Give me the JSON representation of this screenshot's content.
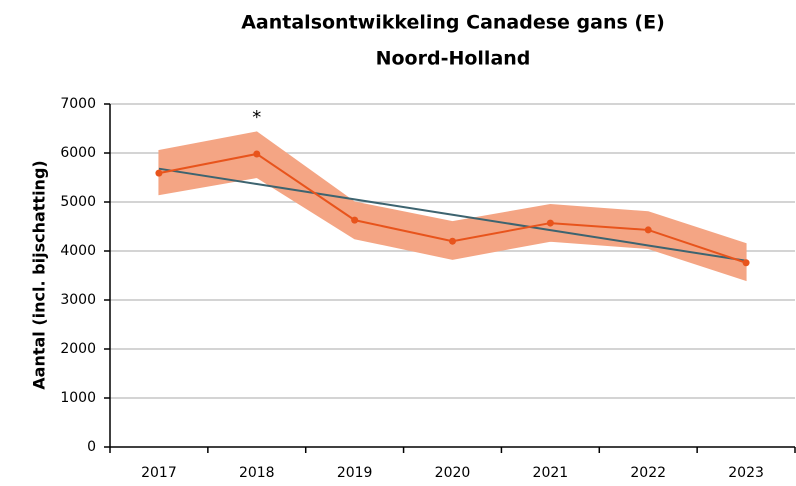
{
  "chart_data": {
    "type": "line",
    "title": [
      "Aantalsontwikkeling Canadese gans (E)",
      "Noord-Holland"
    ],
    "ylabel": "Aantal (incl. bijschatting)",
    "categories": [
      "2017",
      "2018",
      "2019",
      "2020",
      "2021",
      "2022",
      "2023"
    ],
    "values": [
      5590,
      5980,
      4630,
      4200,
      4570,
      4430,
      3760
    ],
    "color": "#e8541c",
    "band": {
      "lower": [
        5150,
        5500,
        4250,
        3830,
        4200,
        4050,
        3400
      ],
      "upper": [
        6050,
        6430,
        5000,
        4600,
        4950,
        4800,
        4150
      ],
      "color": "#f4a584"
    },
    "trend": {
      "values": [
        5680,
        5367,
        5053,
        4740,
        4427,
        4113,
        3800
      ],
      "color": "#3d6470"
    },
    "annotations": [
      {
        "text": "*",
        "category": "2018"
      }
    ],
    "ylim": [
      0,
      7000
    ],
    "yticks": [
      0,
      1000,
      2000,
      3000,
      4000,
      5000,
      6000,
      7000
    ],
    "grid": true
  }
}
